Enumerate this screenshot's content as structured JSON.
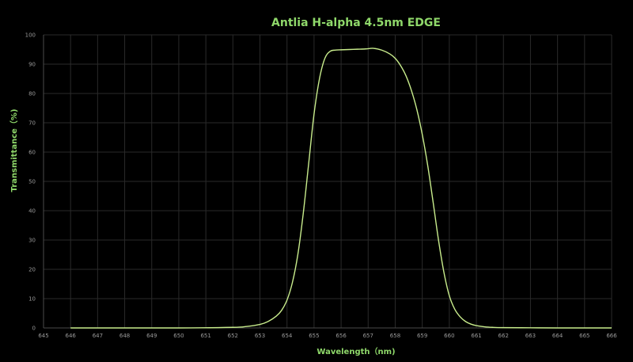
{
  "chart_data": {
    "type": "line",
    "title": "Antlia H-alpha 4.5nm EDGE",
    "xlabel": "Wavelength（nm)",
    "ylabel": "Transmittance（%)",
    "xlim": [
      645,
      666
    ],
    "ylim": [
      0,
      100
    ],
    "x_ticks": [
      645,
      646,
      647,
      648,
      649,
      650,
      651,
      652,
      653,
      654,
      655,
      656,
      657,
      658,
      659,
      660,
      661,
      662,
      663,
      664,
      665,
      666
    ],
    "y_ticks": [
      0,
      10,
      20,
      30,
      40,
      50,
      60,
      70,
      80,
      90,
      100
    ],
    "grid": true,
    "legend": "none",
    "colors": {
      "background": "#000000",
      "line": "#c8ec8c",
      "title": "#8fd86a",
      "grid": "#2a2a2a",
      "tick_text": "#9a9a9a"
    },
    "series": [
      {
        "x": [
          646,
          650,
          652,
          652.5,
          653,
          653.3,
          653.6,
          653.8,
          654,
          654.2,
          654.4,
          654.6,
          654.8,
          655,
          655.2,
          655.4,
          655.6,
          655.8,
          656,
          656.3,
          656.6,
          656.9,
          657.2,
          657.5,
          657.8,
          658,
          658.2,
          658.4,
          658.6,
          658.8,
          659,
          659.2,
          659.4,
          659.6,
          659.8,
          660,
          660.2,
          660.4,
          660.6,
          660.8,
          661,
          661.3,
          661.6,
          662,
          663,
          664,
          666
        ],
        "y": [
          0,
          0,
          0.2,
          0.5,
          1.2,
          2.2,
          4,
          6,
          9.5,
          15.5,
          25,
          39,
          56,
          73,
          85,
          92,
          94.4,
          94.8,
          94.9,
          95,
          95.1,
          95.2,
          95.4,
          94.8,
          93.5,
          92,
          89.5,
          86,
          81,
          74.5,
          66,
          55.5,
          43,
          30,
          19,
          11,
          6.4,
          3.8,
          2.2,
          1.3,
          0.8,
          0.4,
          0.2,
          0.1,
          0.05,
          0,
          0
        ]
      }
    ]
  }
}
